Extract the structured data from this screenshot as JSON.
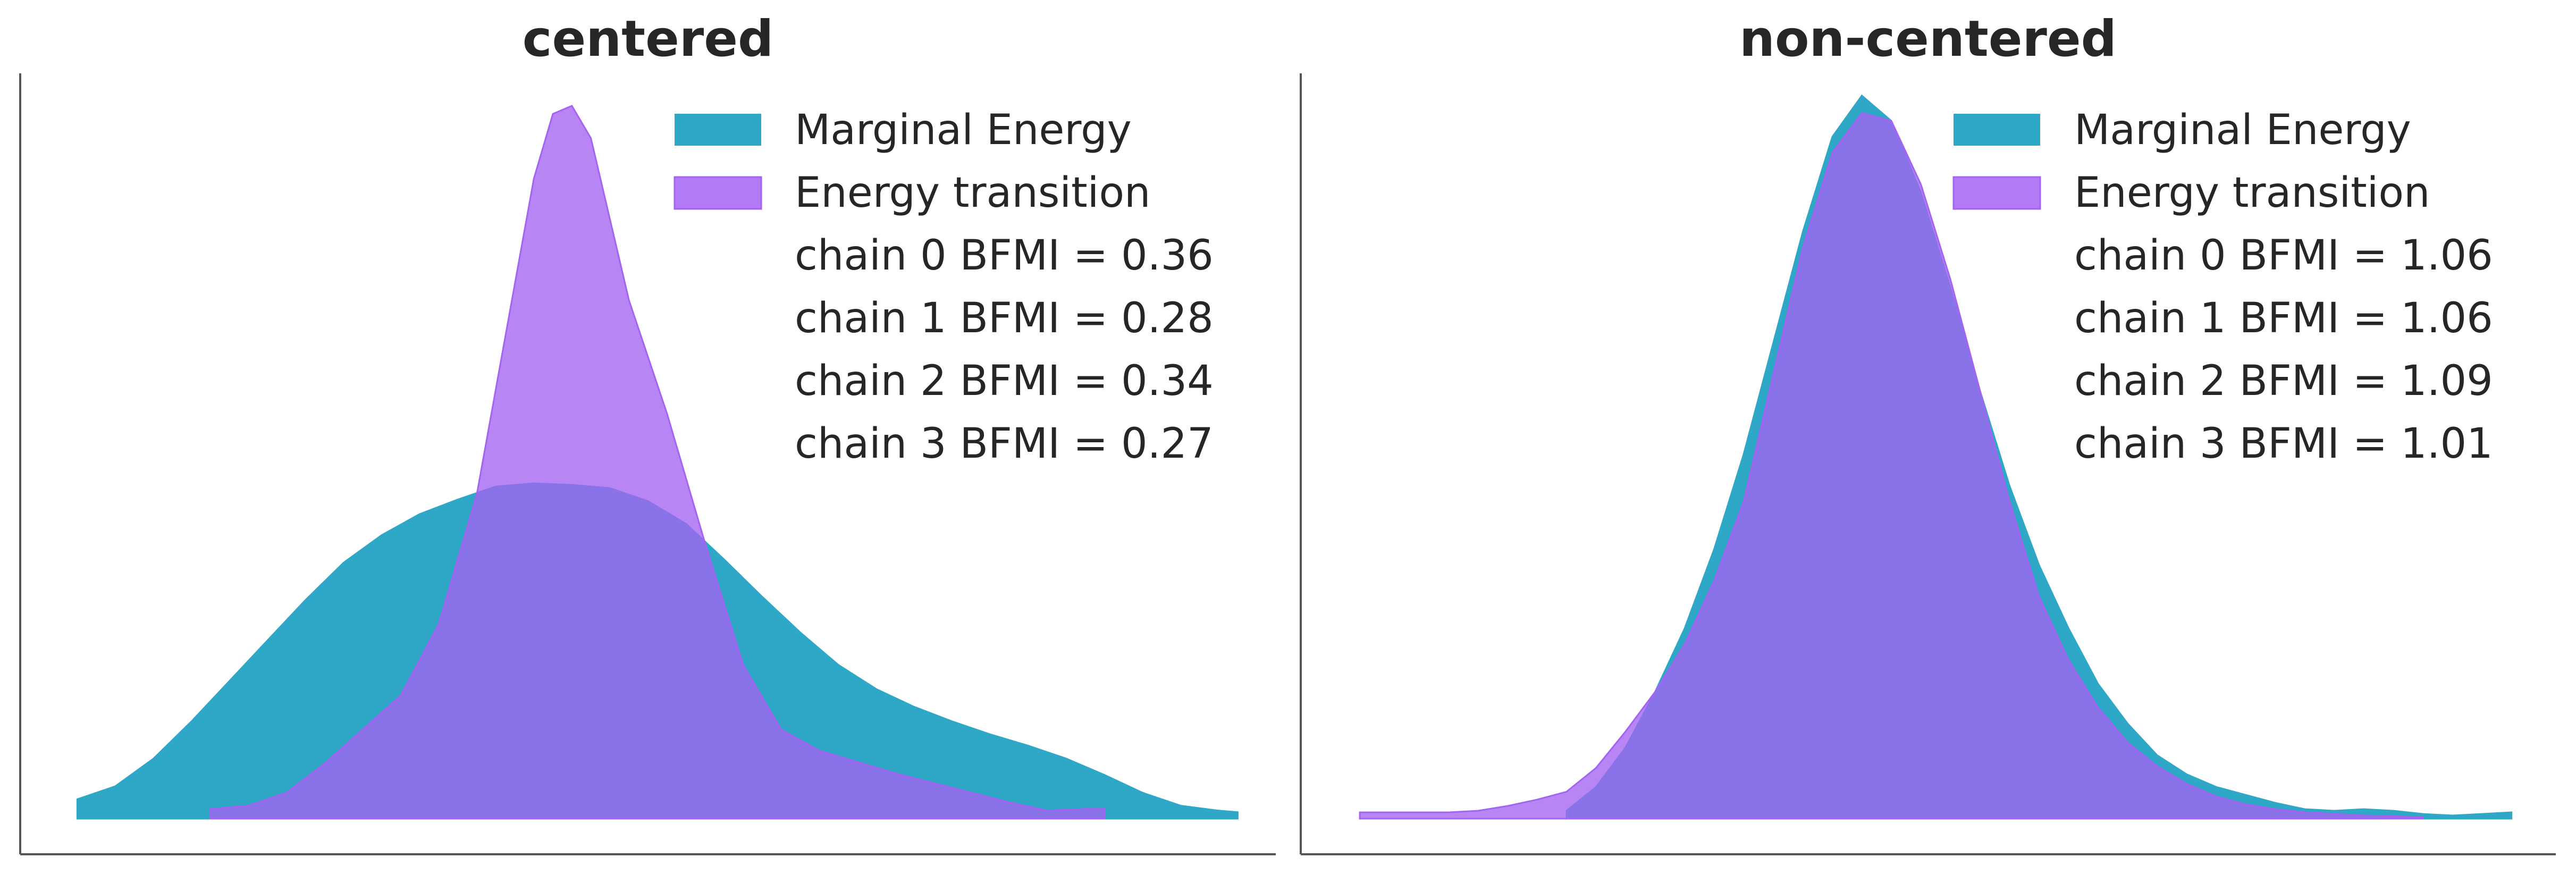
{
  "chart_data": [
    {
      "type": "area",
      "title": "centered",
      "legend_position": "top-right",
      "grid": false,
      "xlim": [
        -2.9,
        3.7
      ],
      "ylim": [
        0,
        0.46
      ],
      "colors": {
        "marginal": "#2ea8c6",
        "transition": "#a463f2",
        "overlap": "#8869e8"
      },
      "legend": [
        "Marginal Energy",
        "Energy transition"
      ],
      "annotations": [
        "chain  0 BFMI = 0.36",
        "chain  1 BFMI = 0.28",
        "chain  2 BFMI = 0.34",
        "chain  3 BFMI = 0.27"
      ],
      "series": [
        {
          "name": "Marginal Energy",
          "x": [
            -2.6,
            -2.4,
            -2.2,
            -2.0,
            -1.8,
            -1.6,
            -1.4,
            -1.2,
            -1.0,
            -0.8,
            -0.6,
            -0.4,
            -0.2,
            0.0,
            0.2,
            0.4,
            0.6,
            0.8,
            1.0,
            1.2,
            1.4,
            1.6,
            1.8,
            2.0,
            2.2,
            2.4,
            2.6,
            2.8,
            3.0,
            3.2,
            3.4,
            3.5
          ],
          "values": [
            0.012,
            0.02,
            0.037,
            0.06,
            0.085,
            0.11,
            0.135,
            0.158,
            0.175,
            0.188,
            0.197,
            0.205,
            0.207,
            0.206,
            0.204,
            0.196,
            0.182,
            0.16,
            0.137,
            0.115,
            0.095,
            0.08,
            0.069,
            0.06,
            0.052,
            0.045,
            0.037,
            0.027,
            0.016,
            0.008,
            0.005,
            0.004
          ]
        },
        {
          "name": "Energy transition",
          "x": [
            -1.9,
            -1.7,
            -1.5,
            -1.3,
            -1.1,
            -0.9,
            -0.7,
            -0.5,
            -0.4,
            -0.3,
            -0.2,
            -0.1,
            0.0,
            0.1,
            0.2,
            0.3,
            0.5,
            0.7,
            0.9,
            1.1,
            1.3,
            1.5,
            1.7,
            1.9,
            2.1,
            2.3,
            2.5,
            2.7,
            2.8
          ],
          "values": [
            0.006,
            0.008,
            0.016,
            0.034,
            0.055,
            0.076,
            0.12,
            0.2,
            0.265,
            0.33,
            0.395,
            0.435,
            0.44,
            0.42,
            0.37,
            0.32,
            0.25,
            0.17,
            0.095,
            0.055,
            0.042,
            0.035,
            0.028,
            0.022,
            0.016,
            0.01,
            0.005,
            0.006,
            0.006
          ]
        }
      ]
    },
    {
      "type": "area",
      "title": "non-centered",
      "legend_position": "top-right",
      "grid": false,
      "xlim": [
        -3.6,
        4.9
      ],
      "ylim": [
        0,
        0.47
      ],
      "colors": {
        "marginal": "#2ea8c6",
        "transition": "#a463f2",
        "overlap": "#8869e8"
      },
      "legend": [
        "Marginal Energy",
        "Energy transition"
      ],
      "annotations": [
        "chain  0 BFMI = 1.06",
        "chain  1 BFMI = 1.06",
        "chain  2 BFMI = 1.09",
        "chain  3 BFMI = 1.01"
      ],
      "series": [
        {
          "name": "Marginal Energy",
          "x": [
            -1.8,
            -1.6,
            -1.4,
            -1.2,
            -1.0,
            -0.8,
            -0.6,
            -0.4,
            -0.2,
            0.0,
            0.2,
            0.4,
            0.6,
            0.8,
            1.0,
            1.2,
            1.4,
            1.6,
            1.8,
            2.0,
            2.2,
            2.4,
            2.6,
            2.8,
            3.0,
            3.2,
            3.4,
            3.6,
            3.8,
            4.0,
            4.2,
            4.4,
            4.6
          ],
          "values": [
            0.005,
            0.02,
            0.045,
            0.08,
            0.12,
            0.17,
            0.23,
            0.3,
            0.37,
            0.43,
            0.456,
            0.44,
            0.395,
            0.335,
            0.27,
            0.21,
            0.16,
            0.12,
            0.085,
            0.06,
            0.04,
            0.028,
            0.02,
            0.015,
            0.01,
            0.006,
            0.005,
            0.006,
            0.005,
            0.003,
            0.002,
            0.003,
            0.004
          ]
        },
        {
          "name": "Energy transition",
          "x": [
            -3.2,
            -3.0,
            -2.8,
            -2.6,
            -2.4,
            -2.2,
            -2.0,
            -1.8,
            -1.6,
            -1.4,
            -1.2,
            -1.0,
            -0.8,
            -0.6,
            -0.4,
            -0.2,
            0.0,
            0.2,
            0.4,
            0.6,
            0.8,
            1.0,
            1.2,
            1.4,
            1.6,
            1.8,
            2.0,
            2.2,
            2.4,
            2.6,
            2.8,
            3.0,
            3.2,
            3.6,
            4.0
          ],
          "values": [
            0.004,
            0.004,
            0.004,
            0.004,
            0.005,
            0.008,
            0.012,
            0.017,
            0.032,
            0.055,
            0.08,
            0.11,
            0.15,
            0.2,
            0.28,
            0.36,
            0.42,
            0.445,
            0.44,
            0.4,
            0.34,
            0.27,
            0.2,
            0.14,
            0.1,
            0.07,
            0.048,
            0.033,
            0.022,
            0.014,
            0.009,
            0.006,
            0.004,
            0.002,
            0.001
          ]
        }
      ]
    }
  ]
}
